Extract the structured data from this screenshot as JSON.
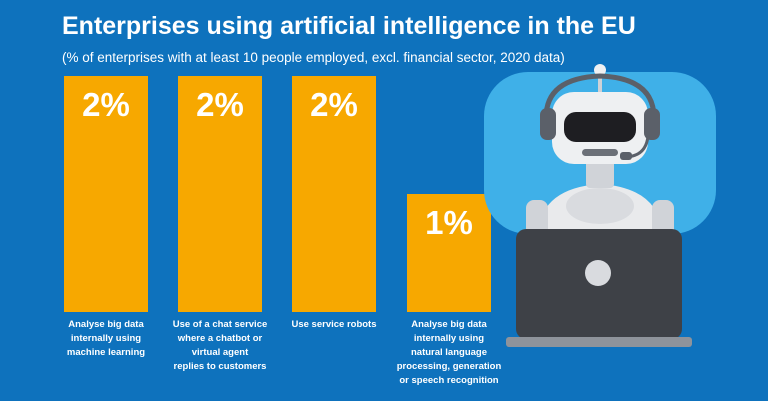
{
  "title": "Enterprises using artificial intelligence in the EU",
  "subtitle": "(% of enterprises with at least 10 people employed, excl. financial sector, 2020 data)",
  "colors": {
    "background": "#0e72bd",
    "bar": "#f7a800",
    "robot_panel": "#3fb0e8"
  },
  "chart_data": {
    "type": "bar",
    "title": "Enterprises using artificial intelligence in the EU",
    "subtitle": "(% of enterprises with at least 10 people employed, excl. financial sector, 2020 data)",
    "categories": [
      "Analyse big data internally using machine learning",
      "Use of a chat service where  a chatbot or virtual agent replies to customers",
      "Use service robots",
      "Analyse big data internally using natural language processing, generation or speech recognition"
    ],
    "category_lines": [
      [
        "Analyse big data",
        "internally using",
        "machine learning"
      ],
      [
        "Use of a chat service",
        "where  a chatbot or",
        "virtual agent",
        "replies to customers"
      ],
      [
        "Use service robots"
      ],
      [
        "Analyse big data",
        "internally using",
        "natural language",
        "processing, generation",
        "or speech recognition"
      ]
    ],
    "values": [
      2,
      2,
      2,
      1
    ],
    "value_labels": [
      "2%",
      "2%",
      "2%",
      "1%"
    ],
    "unit": "%",
    "ylim": [
      0,
      2
    ],
    "grid": false,
    "legend": "none"
  },
  "illustration": {
    "icon": "robot-with-headset-and-laptop-icon"
  }
}
